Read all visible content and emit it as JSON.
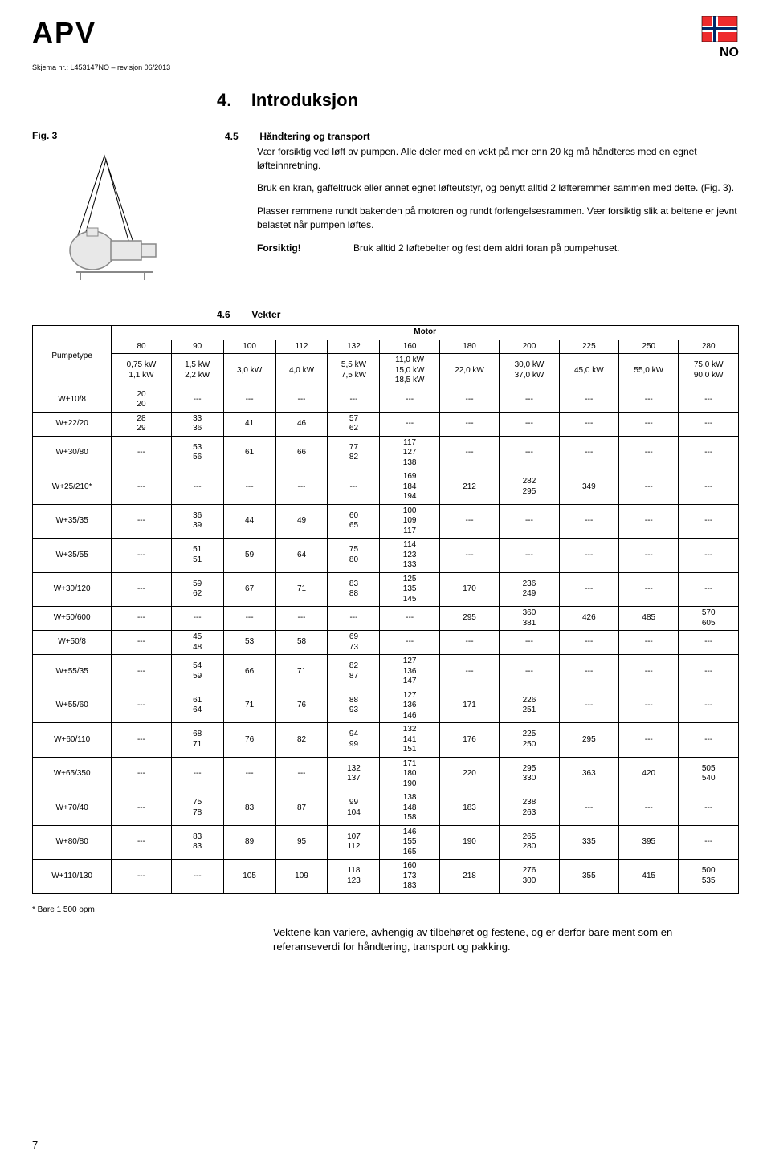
{
  "header": {
    "logo": "APV",
    "country_code": "NO",
    "form_no": "Skjema nr.: L453147NO – revisjon 06/2013"
  },
  "section": {
    "number": "4.",
    "title": "Introduksjon"
  },
  "fig_label": "Fig. 3",
  "sub45": {
    "num": "4.5",
    "title": "Håndtering og transport",
    "para1": "Vær forsiktig ved løft av pumpen. Alle deler med en vekt på mer enn 20 kg må håndteres med en egnet løfteinnretning.",
    "para2": "Bruk en kran, gaffeltruck eller annet egnet løfteutstyr, og benytt alltid 2 løfteremmer sammen med dette. (Fig. 3).",
    "para3": "Plasser remmene rundt bakenden på motoren og rundt forlengelsesrammen. Vær forsiktig slik at beltene er jevnt belastet når pumpen løftes.",
    "caution_label": "Forsiktig!",
    "caution_text": "Bruk alltid 2 løftebelter og fest dem aldri foran på pumpehuset."
  },
  "sub46": {
    "num": "4.6",
    "title": "Vekter"
  },
  "table": {
    "motor_header": "Motor",
    "pumpetype_header": "Pumpetype",
    "columns": [
      "80",
      "90",
      "100",
      "112",
      "132",
      "160",
      "180",
      "200",
      "225",
      "250",
      "280"
    ],
    "col_kw": [
      "0,75 kW\n1,1 kW",
      "1,5 kW\n2,2 kW",
      "3,0 kW",
      "4,0 kW",
      "5,5 kW\n7,5 kW",
      "11,0 kW\n15,0 kW\n18,5 kW",
      "22,0 kW",
      "30,0 kW\n37,0 kW",
      "45,0 kW",
      "55,0 kW",
      "75,0 kW\n90,0 kW"
    ],
    "rows": [
      {
        "label": "W+10/8",
        "cells": [
          "20\n20",
          "---",
          "---",
          "---",
          "---",
          "---",
          "---",
          "---",
          "---",
          "---",
          "---"
        ]
      },
      {
        "label": "W+22/20",
        "cells": [
          "28\n29",
          "33\n36",
          "41",
          "46",
          "57\n62",
          "---",
          "---",
          "---",
          "---",
          "---",
          "---"
        ]
      },
      {
        "label": "W+30/80",
        "cells": [
          "---",
          "53\n56",
          "61",
          "66",
          "77\n82",
          "117\n127\n138",
          "---",
          "---",
          "---",
          "---",
          "---"
        ]
      },
      {
        "label": "W+25/210*",
        "cells": [
          "---",
          "---",
          "---",
          "---",
          "---",
          "169\n184\n194",
          "212",
          "282\n295",
          "349",
          "---",
          "---"
        ]
      },
      {
        "label": "W+35/35",
        "cells": [
          "---",
          "36\n39",
          "44",
          "49",
          "60\n65",
          "100\n109\n117",
          "---",
          "---",
          "---",
          "---",
          "---"
        ]
      },
      {
        "label": "W+35/55",
        "cells": [
          "---",
          "51\n51",
          "59",
          "64",
          "75\n80",
          "114\n123\n133",
          "---",
          "---",
          "---",
          "---",
          "---"
        ]
      },
      {
        "label": "W+30/120",
        "cells": [
          "---",
          "59\n62",
          "67",
          "71",
          "83\n88",
          "125\n135\n145",
          "170",
          "236\n249",
          "---",
          "---",
          "---"
        ]
      },
      {
        "label": "W+50/600",
        "cells": [
          "---",
          "---",
          "---",
          "---",
          "---",
          "---",
          "295",
          "360\n381",
          "426",
          "485",
          "570\n605"
        ]
      },
      {
        "label": "W+50/8",
        "cells": [
          "---",
          "45\n48",
          "53",
          "58",
          "69\n73",
          "---",
          "---",
          "---",
          "---",
          "---",
          "---"
        ]
      },
      {
        "label": "W+55/35",
        "cells": [
          "---",
          "54\n59",
          "66",
          "71",
          "82\n87",
          "127\n136\n147",
          "---",
          "---",
          "---",
          "---",
          "---"
        ]
      },
      {
        "label": "W+55/60",
        "cells": [
          "---",
          "61\n64",
          "71",
          "76",
          "88\n93",
          "127\n136\n146",
          "171",
          "226\n251",
          "---",
          "---",
          "---"
        ]
      },
      {
        "label": "W+60/110",
        "cells": [
          "---",
          "68\n71",
          "76",
          "82",
          "94\n99",
          "132\n141\n151",
          "176",
          "225\n250",
          "295",
          "---",
          "---"
        ]
      },
      {
        "label": "W+65/350",
        "cells": [
          "---",
          "---",
          "---",
          "---",
          "132\n137",
          "171\n180\n190",
          "220",
          "295\n330",
          "363",
          "420",
          "505\n540"
        ]
      },
      {
        "label": "W+70/40",
        "cells": [
          "---",
          "75\n78",
          "83",
          "87",
          "99\n104",
          "138\n148\n158",
          "183",
          "238\n263",
          "---",
          "---",
          "---"
        ]
      },
      {
        "label": "W+80/80",
        "cells": [
          "---",
          "83\n83",
          "89",
          "95",
          "107\n112",
          "146\n155\n165",
          "190",
          "265\n280",
          "335",
          "395",
          "---"
        ]
      },
      {
        "label": "W+110/130",
        "cells": [
          "---",
          "---",
          "105",
          "109",
          "118\n123",
          "160\n173\n183",
          "218",
          "276\n300",
          "355",
          "415",
          "500\n535"
        ]
      }
    ],
    "footnote": "* Bare 1 500 opm"
  },
  "closing_text": "Vektene kan variere, avhengig av tilbehøret og festene, og er derfor bare ment som en referanseverdi for håndtering, transport og pakking.",
  "page_number": "7",
  "flag": {
    "bg": "#ef2b2d",
    "white": "#ffffff",
    "blue": "#002868"
  }
}
